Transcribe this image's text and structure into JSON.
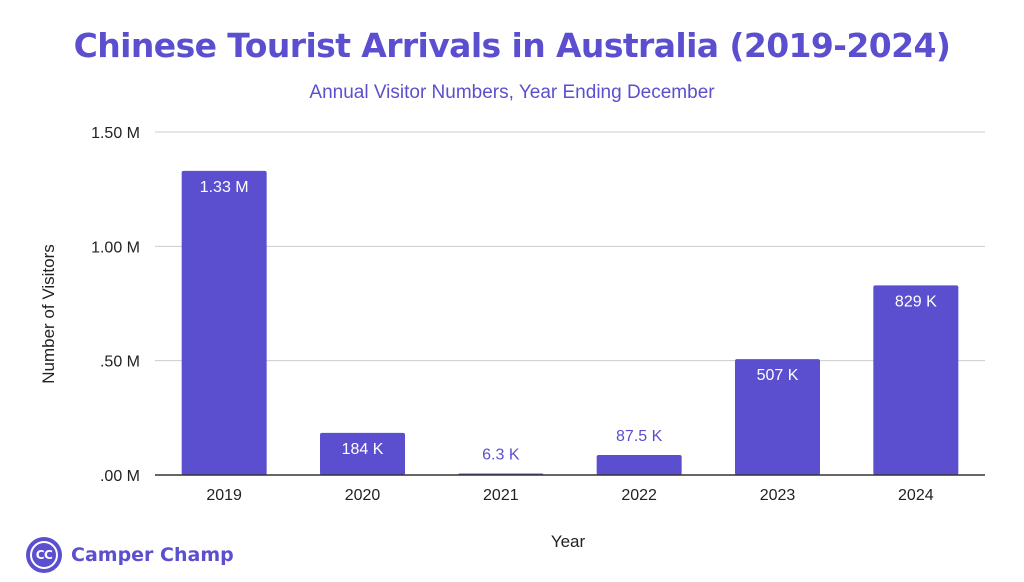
{
  "chart_data": {
    "type": "bar",
    "title": "Chinese Tourist Arrivals in Australia (2019-2024)",
    "subtitle": "Annual Visitor Numbers, Year Ending December",
    "xlabel": "Year",
    "ylabel": "Number of Visitors",
    "categories": [
      "2019",
      "2020",
      "2021",
      "2022",
      "2023",
      "2024"
    ],
    "values": [
      1330000,
      184000,
      6300,
      87500,
      507000,
      829000
    ],
    "data_labels": [
      "1.33 M",
      "184 K",
      "6.3 K",
      "87.5 K",
      "507 K",
      "829 K"
    ],
    "ylim": [
      0,
      1500000
    ],
    "yticks": [
      0,
      500000,
      1000000,
      1500000
    ],
    "ytick_labels": [
      ".00 M",
      ".50 M",
      "1.00 M",
      "1.50 M"
    ],
    "grid": true,
    "legend": "none",
    "bar_color": "#5b4fcf"
  },
  "brand": {
    "logo_text": "CC",
    "name": "Camper Champ"
  },
  "colors": {
    "accent": "#5b4fcf",
    "grid": "#cccccc",
    "axis": "#333333",
    "text": "#222222"
  }
}
